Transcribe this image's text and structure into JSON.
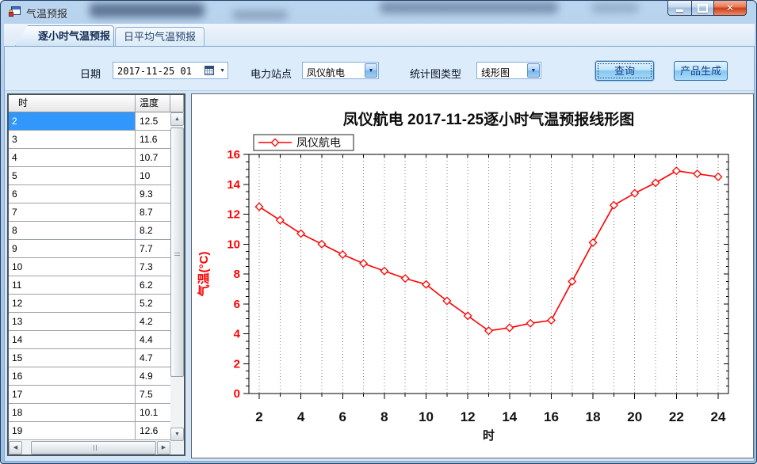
{
  "window": {
    "title": "气温预报"
  },
  "icons": {
    "minimize": "minimize-glyph",
    "maximize": "maximize-glyph",
    "close": "✕",
    "combo_arrow": "▼",
    "calendar_arrow": "▼",
    "scroll_up": "▲",
    "scroll_down": "▼",
    "scroll_left": "◀",
    "scroll_right": "▶"
  },
  "tabs": [
    {
      "label": "逐小时气温预报",
      "active": true
    },
    {
      "label": "日平均气温预报",
      "active": false
    }
  ],
  "toolbar": {
    "date_label": "日期",
    "date_value": "2017-11-25 01",
    "station_label": "电力站点",
    "station_value": "凤仪航电",
    "chart_type_label": "统计图类型",
    "chart_type_value": "线形图",
    "query_button": "查询",
    "generate_button": "产品生成"
  },
  "table": {
    "columns": [
      "时",
      "温度"
    ],
    "selected_row_index": 0,
    "rows": [
      [
        "2",
        "12.5"
      ],
      [
        "3",
        "11.6"
      ],
      [
        "4",
        "10.7"
      ],
      [
        "5",
        "10"
      ],
      [
        "6",
        "9.3"
      ],
      [
        "7",
        "8.7"
      ],
      [
        "8",
        "8.2"
      ],
      [
        "9",
        "7.7"
      ],
      [
        "10",
        "7.3"
      ],
      [
        "11",
        "6.2"
      ],
      [
        "12",
        "5.2"
      ],
      [
        "13",
        "4.2"
      ],
      [
        "14",
        "4.4"
      ],
      [
        "15",
        "4.7"
      ],
      [
        "16",
        "4.9"
      ],
      [
        "17",
        "7.5"
      ],
      [
        "18",
        "10.1"
      ],
      [
        "19",
        "12.6"
      ]
    ]
  },
  "chart_data": {
    "type": "line",
    "title": "凤仪航电 2017-11-25逐小时气温预报线形图",
    "legend": [
      "凤仪航电"
    ],
    "legend_position": "top-left",
    "xlabel": "时",
    "ylabel": "气温(°C)",
    "x": [
      2,
      3,
      4,
      5,
      6,
      7,
      8,
      9,
      10,
      11,
      12,
      13,
      14,
      15,
      16,
      17,
      18,
      19,
      20,
      21,
      22,
      23,
      24
    ],
    "series": [
      {
        "name": "凤仪航电",
        "values": [
          12.5,
          11.6,
          10.7,
          10,
          9.3,
          8.7,
          8.2,
          7.7,
          7.3,
          6.2,
          5.2,
          4.2,
          4.4,
          4.7,
          4.9,
          7.5,
          10.1,
          12.6,
          13.4,
          14.1,
          14.9,
          14.7,
          14.5
        ]
      }
    ],
    "ylim": [
      0,
      16
    ],
    "x_major_ticks": [
      2,
      4,
      6,
      8,
      10,
      12,
      14,
      16,
      18,
      20,
      22,
      24
    ],
    "y_major_ticks": [
      0,
      2,
      4,
      6,
      8,
      10,
      12,
      14,
      16
    ],
    "grid": "vertical-dotted",
    "line_color": "#ff0000",
    "marker": "diamond-open"
  },
  "colors": {
    "titlebar_glass": "#aecbe8",
    "toolbar_bg": "#dcecfb",
    "button_text": "#16408c",
    "selection_bg": "#3297fb",
    "chart_line": "#ff0000",
    "axis_label_red": "#ff0000",
    "tab_border": "#7ba3cc",
    "close_button": "#d03c17"
  }
}
